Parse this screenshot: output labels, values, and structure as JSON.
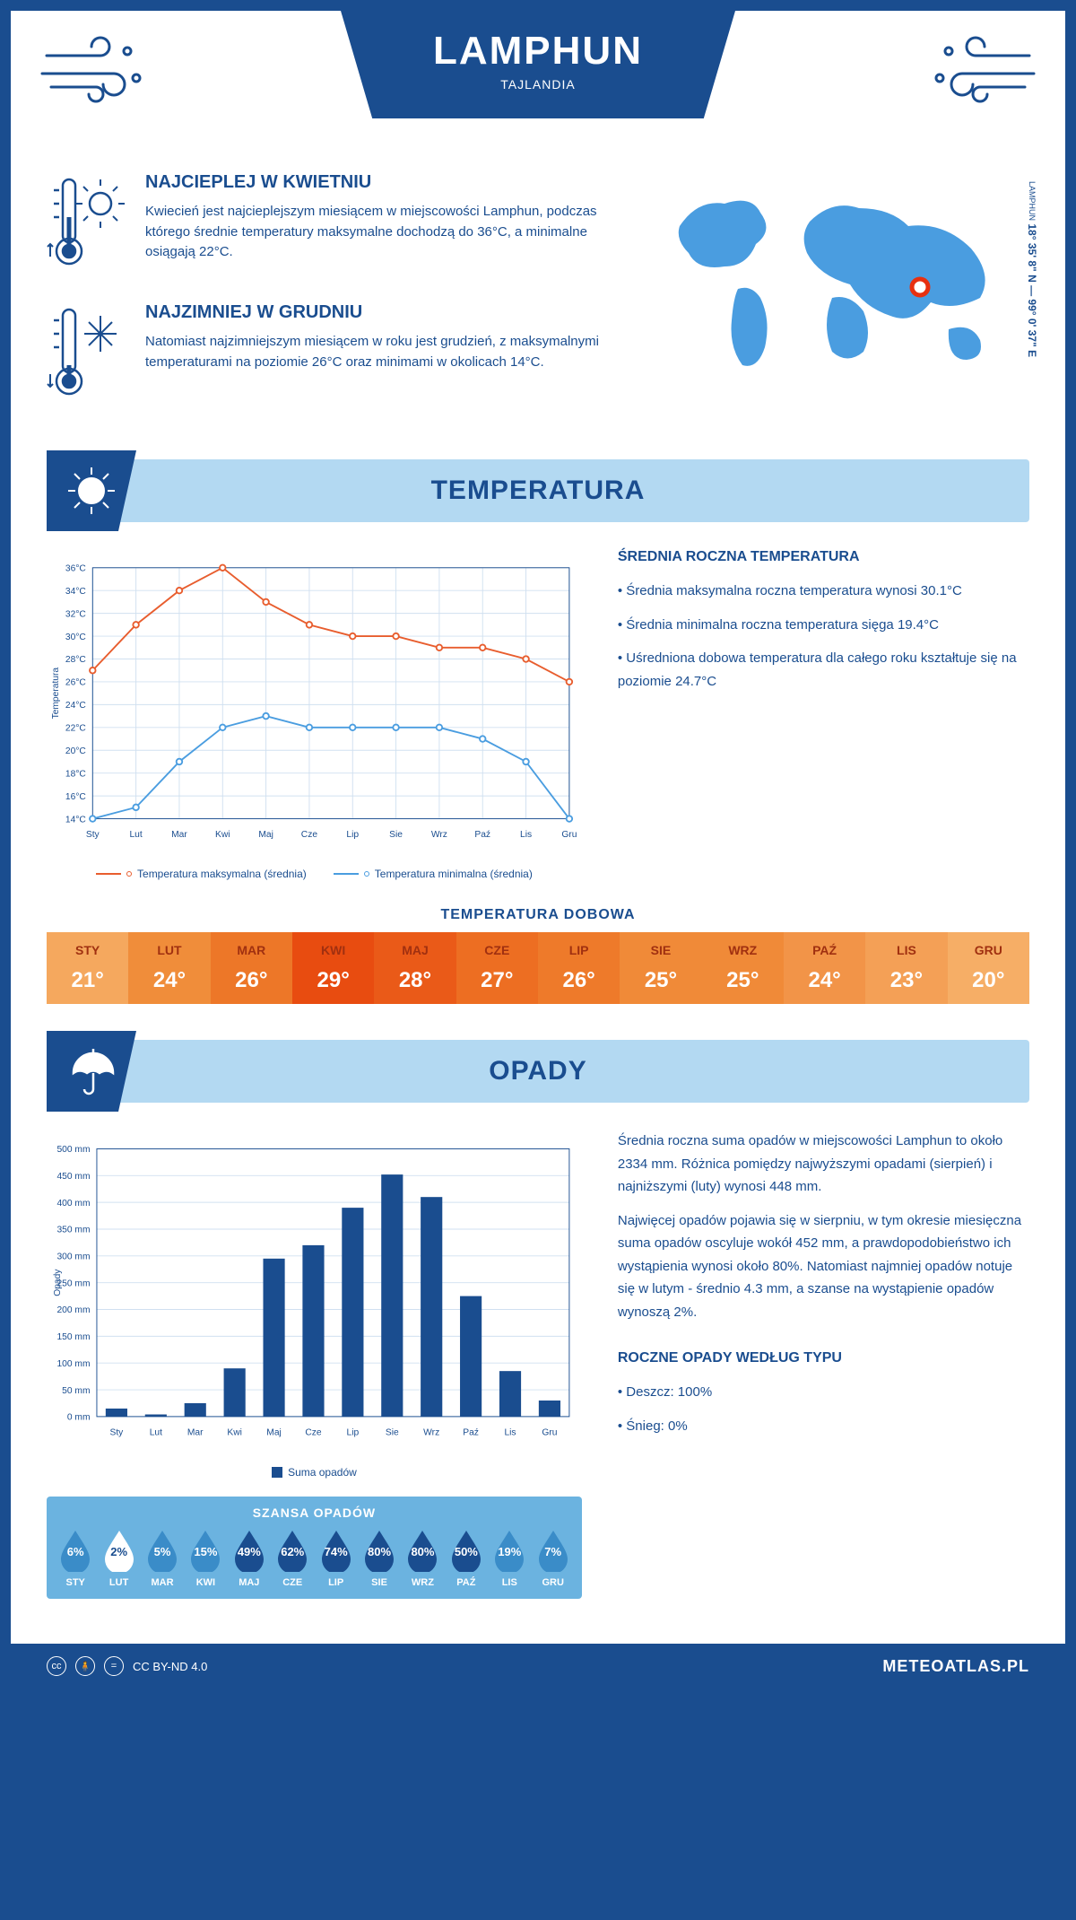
{
  "header": {
    "title": "LAMPHUN",
    "subtitle": "TAJLANDIA"
  },
  "intro": {
    "hot": {
      "title": "NAJCIEPLEJ W KWIETNIU",
      "body": "Kwiecień jest najcieplejszym miesiącem w miejscowości Lamphun, podczas którego średnie temperatury maksymalne dochodzą do 36°C, a minimalne osiągają 22°C."
    },
    "cold": {
      "title": "NAJZIMNIEJ W GRUDNIU",
      "body": "Natomiast najzimniejszym miesiącem w roku jest grudzień, z maksymalnymi temperaturami na poziomie 26°C oraz minimami w okolicach 14°C."
    },
    "coords": "18° 35' 8\" N — 99° 0' 37\" E",
    "coords_sub": "LAMPHUN"
  },
  "temperature": {
    "banner": "TEMPERATURA",
    "chart": {
      "type": "line",
      "months": [
        "Sty",
        "Lut",
        "Mar",
        "Kwi",
        "Maj",
        "Cze",
        "Lip",
        "Sie",
        "Wrz",
        "Paź",
        "Lis",
        "Gru"
      ],
      "max": [
        27,
        31,
        34,
        36,
        33,
        31,
        30,
        30,
        29,
        29,
        28,
        26
      ],
      "min": [
        14,
        15,
        19,
        22,
        23,
        22,
        22,
        22,
        22,
        21,
        19,
        14
      ],
      "ylim": [
        14,
        36
      ],
      "ytick_step": 2,
      "max_color": "#e85d2e",
      "min_color": "#4a9de0",
      "grid_color": "#d0e0f0",
      "y_label": "Temperatura",
      "legend_max": "Temperatura maksymalna (średnia)",
      "legend_min": "Temperatura minimalna (średnia)"
    },
    "side": {
      "title": "ŚREDNIA ROCZNA TEMPERATURA",
      "p1": "• Średnia maksymalna roczna temperatura wynosi 30.1°C",
      "p2": "• Średnia minimalna roczna temperatura sięga 19.4°C",
      "p3": "• Uśredniona dobowa temperatura dla całego roku kształtuje się na poziomie 24.7°C"
    },
    "daily": {
      "title": "TEMPERATURA DOBOWA",
      "months": [
        "STY",
        "LUT",
        "MAR",
        "KWI",
        "MAJ",
        "CZE",
        "LIP",
        "SIE",
        "WRZ",
        "PAŹ",
        "LIS",
        "GRU"
      ],
      "values": [
        "21°",
        "24°",
        "26°",
        "29°",
        "28°",
        "27°",
        "26°",
        "25°",
        "25°",
        "24°",
        "23°",
        "20°"
      ],
      "colors": [
        "#f5a85e",
        "#f08d3a",
        "#ed7728",
        "#e84c10",
        "#ea5a18",
        "#ed6e22",
        "#ee7a2a",
        "#f08a38",
        "#f08a38",
        "#f29448",
        "#f4a056",
        "#f6ae66"
      ]
    }
  },
  "precip": {
    "banner": "OPADY",
    "chart": {
      "type": "bar",
      "months": [
        "Sty",
        "Lut",
        "Mar",
        "Kwi",
        "Maj",
        "Cze",
        "Lip",
        "Sie",
        "Wrz",
        "Paź",
        "Lis",
        "Gru"
      ],
      "values": [
        15,
        4,
        25,
        90,
        295,
        320,
        390,
        452,
        410,
        225,
        85,
        30
      ],
      "ylim": [
        0,
        500
      ],
      "ytick_step": 50,
      "bar_color": "#1a4d8f",
      "grid_color": "#d0e0f0",
      "y_label": "Opady",
      "legend": "Suma opadów"
    },
    "side": {
      "p1": "Średnia roczna suma opadów w miejscowości Lamphun to około 2334 mm. Różnica pomiędzy najwyższymi opadami (sierpień) i najniższymi (luty) wynosi 448 mm.",
      "p2": "Najwięcej opadów pojawia się w sierpniu, w tym okresie miesięczna suma opadów oscyluje wokół 452 mm, a prawdopodobieństwo ich wystąpienia wynosi około 80%. Natomiast najmniej opadów notuje się w lutym - średnio 4.3 mm, a szanse na wystąpienie opadów wynoszą 2%.",
      "type_title": "ROCZNE OPADY WEDŁUG TYPU",
      "type_p1": "• Deszcz: 100%",
      "type_p2": "• Śnieg: 0%"
    },
    "chance": {
      "title": "SZANSA OPADÓW",
      "months": [
        "STY",
        "LUT",
        "MAR",
        "KWI",
        "MAJ",
        "CZE",
        "LIP",
        "SIE",
        "WRZ",
        "PAŹ",
        "LIS",
        "GRU"
      ],
      "pct": [
        "6%",
        "2%",
        "5%",
        "15%",
        "49%",
        "62%",
        "74%",
        "80%",
        "80%",
        "50%",
        "19%",
        "7%"
      ],
      "fill": [
        "#3a8cc8",
        "#ffffff",
        "#3a8cc8",
        "#3a8cc8",
        "#1a4d8f",
        "#1a4d8f",
        "#1a4d8f",
        "#1a4d8f",
        "#1a4d8f",
        "#1a4d8f",
        "#3a8cc8",
        "#3a8cc8"
      ],
      "text": [
        "#fff",
        "#1a4d8f",
        "#fff",
        "#fff",
        "#fff",
        "#fff",
        "#fff",
        "#fff",
        "#fff",
        "#fff",
        "#fff",
        "#fff"
      ]
    }
  },
  "footer": {
    "license": "CC BY-ND 4.0",
    "site": "METEOATLAS.PL"
  }
}
